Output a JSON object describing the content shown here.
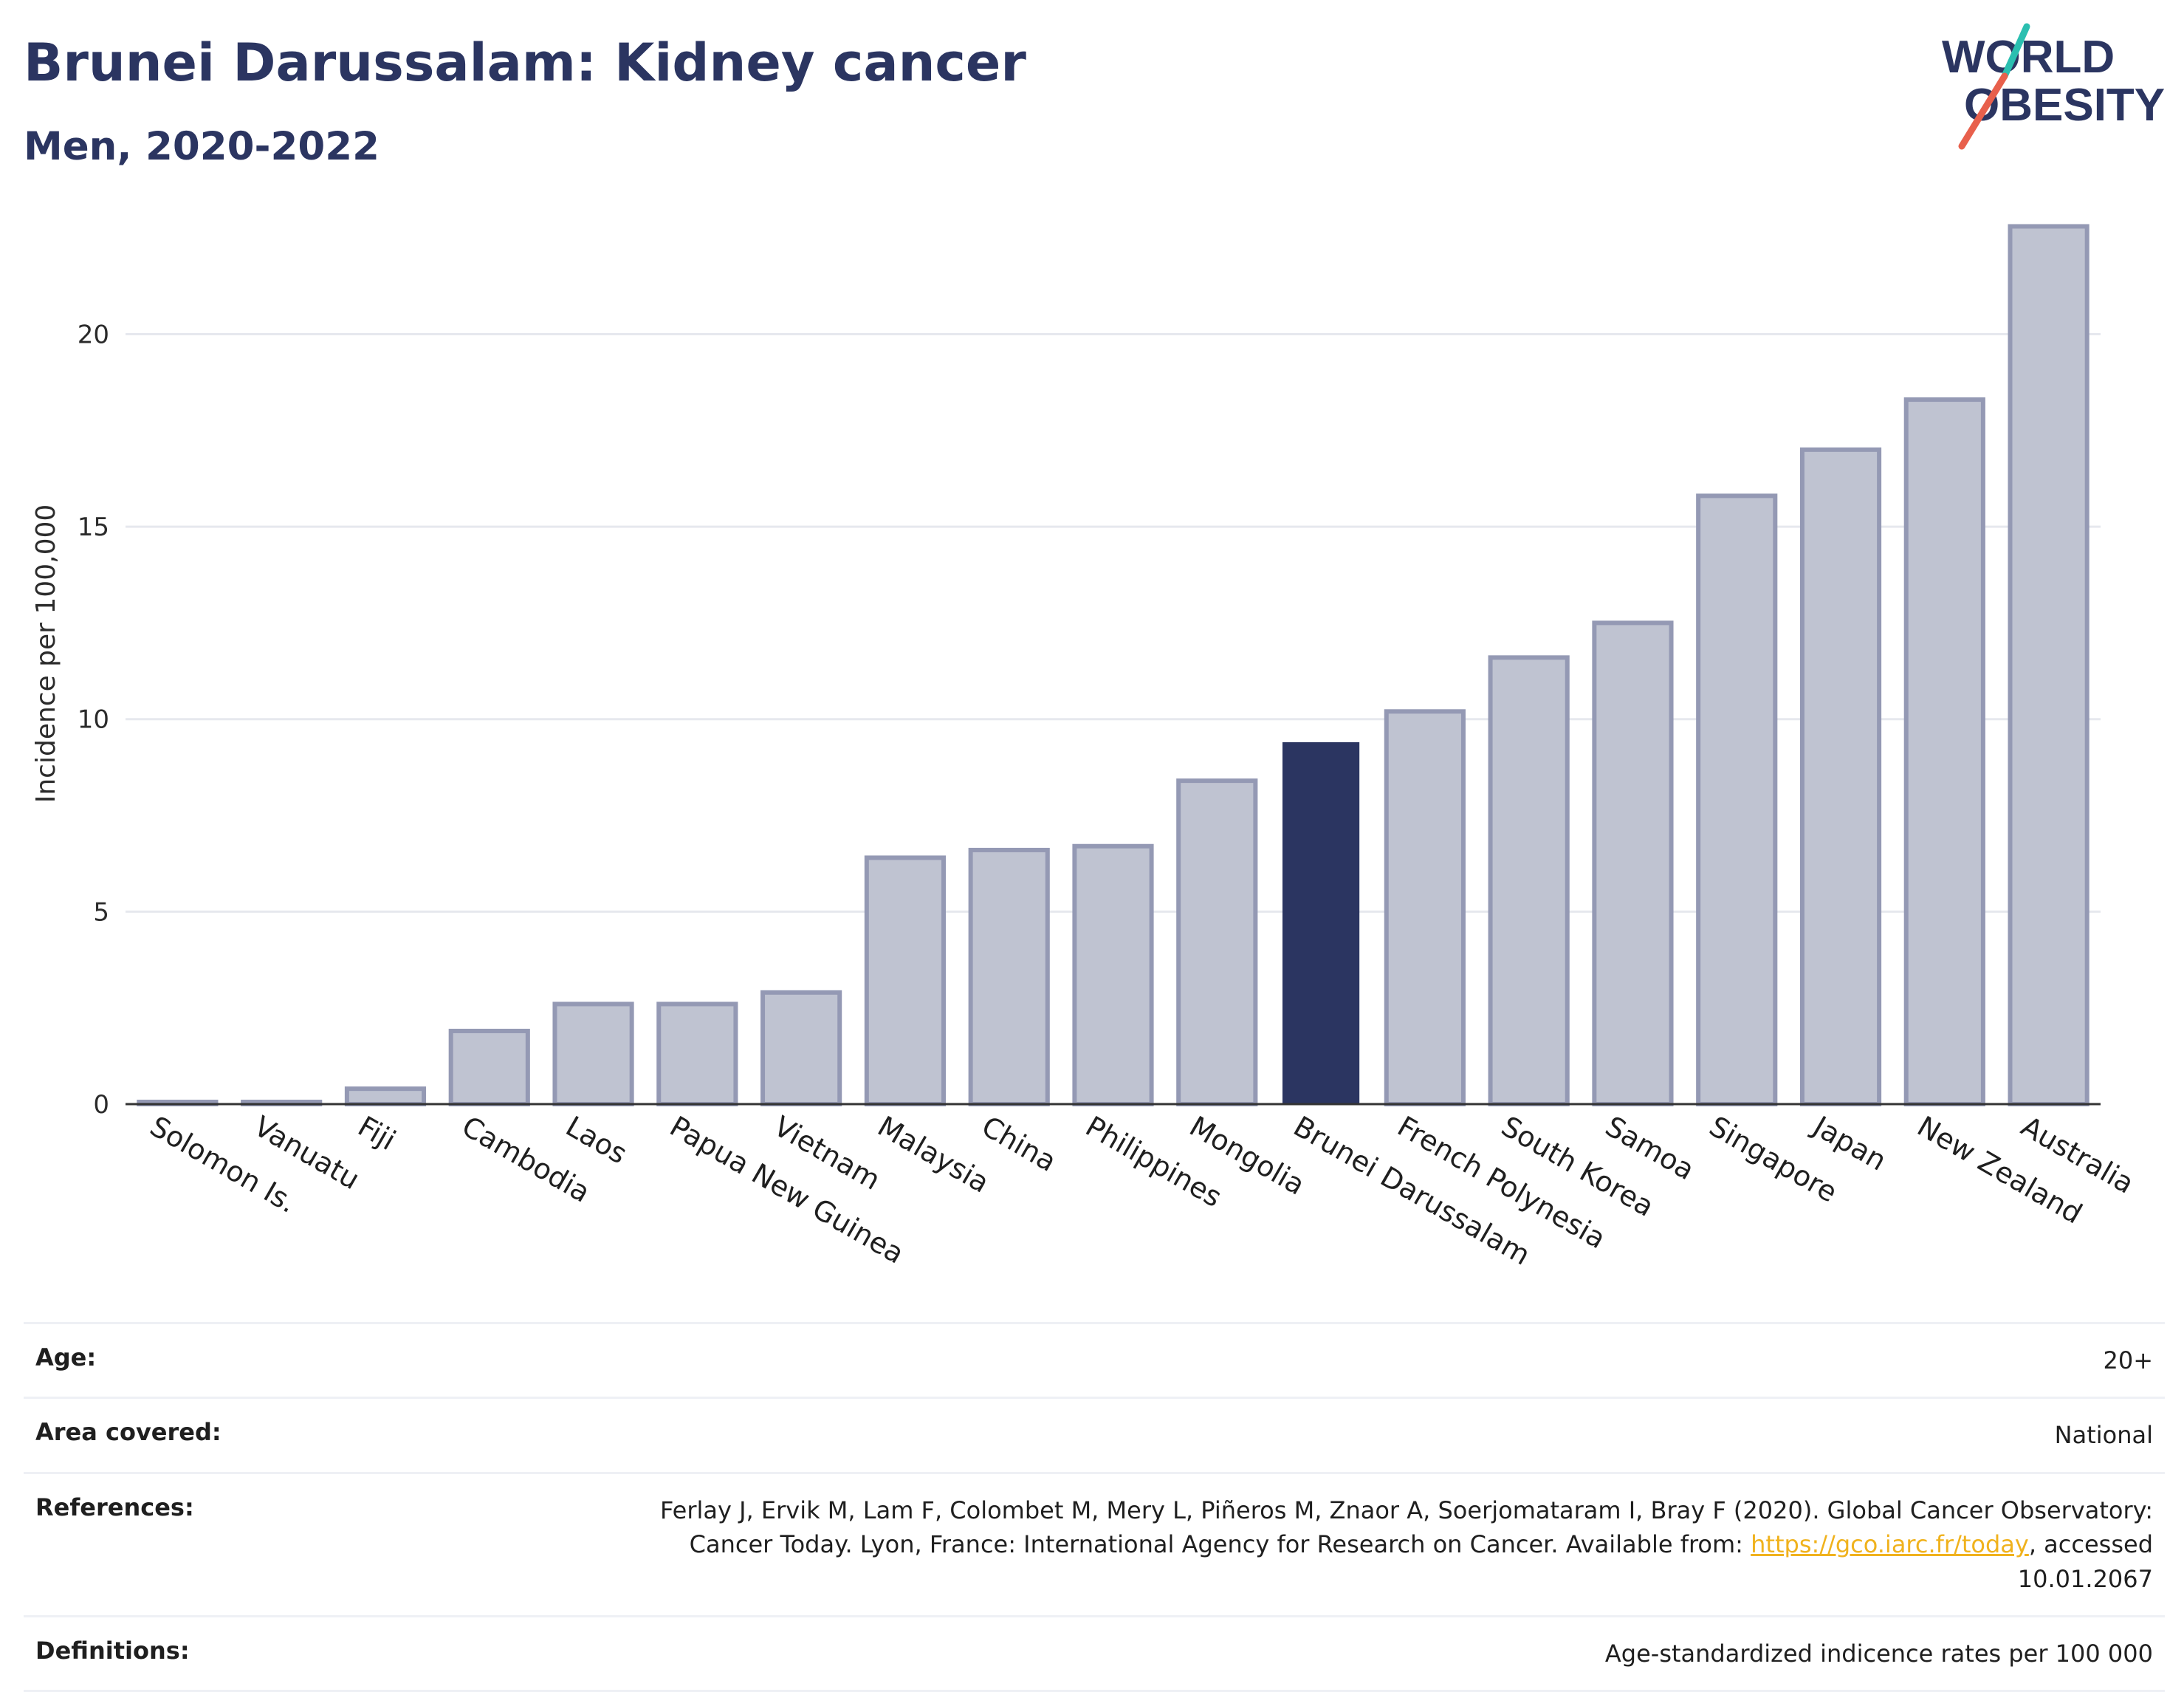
{
  "header": {
    "title": "Brunei Darussalam: Kidney cancer",
    "subtitle": "Men, 2020-2022"
  },
  "logo": {
    "line1": "WORLD",
    "line2": "OBESITY",
    "colors": {
      "text": "#2b3561",
      "teal": "#2bbfb0",
      "coral": "#e8604c"
    }
  },
  "colors": {
    "bar_default": "#bfc3d1",
    "bar_border": "#9499b4",
    "bar_highlight": "#2b3561",
    "grid": "#e6e8ee",
    "axis": "#333333"
  },
  "chart_data": {
    "type": "bar",
    "title": "Brunei Darussalam: Kidney cancer",
    "subtitle": "Men, 2020-2022",
    "xlabel": "",
    "ylabel": "Incidence per 100,000",
    "ylim": [
      0,
      23.5
    ],
    "yticks": [
      0,
      5,
      10,
      15,
      20
    ],
    "highlight": "Brunei Darussalam",
    "grid": true,
    "categories": [
      "Solomon Is.",
      "Vanuatu",
      "Fiji",
      "Cambodia",
      "Laos",
      "Papua New Guinea",
      "Vietnam",
      "Malaysia",
      "China",
      "Philippines",
      "Mongolia",
      "Brunei Darussalam",
      "French Polynesia",
      "South Korea",
      "Samoa",
      "Singapore",
      "Japan",
      "New Zealand",
      "Australia"
    ],
    "values": [
      0.05,
      0.05,
      0.4,
      1.9,
      2.6,
      2.6,
      2.9,
      6.4,
      6.6,
      6.7,
      8.4,
      9.4,
      10.2,
      11.6,
      12.5,
      15.8,
      17.0,
      18.3,
      22.8
    ]
  },
  "info": [
    {
      "label": "Age:",
      "value": "20+"
    },
    {
      "label": "Area covered:",
      "value": "National"
    },
    {
      "label": "References:",
      "value_before": "Ferlay J, Ervik M, Lam F, Colombet M, Mery L, Piñeros M, Znaor A, Soerjomataram I, Bray F (2020). Global Cancer Observatory: Cancer Today. Lyon, France: International Agency for Research on Cancer. Available from: ",
      "link": "https://gco.iarc.fr/today",
      "value_after": ", accessed 10.01.2067"
    },
    {
      "label": "Definitions:",
      "value": "Age-standardized indicence rates per 100 000"
    }
  ]
}
